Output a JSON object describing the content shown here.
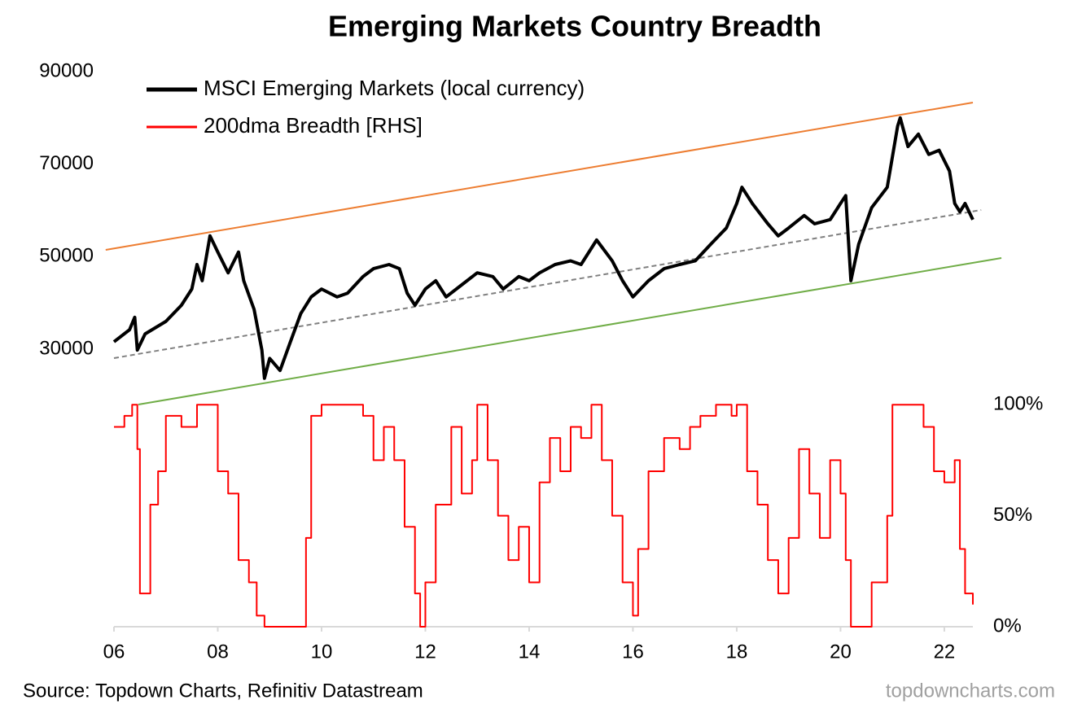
{
  "chart_data": {
    "type": "line",
    "title": "Emerging Markets Country Breadth",
    "source": "Source: Topdown Charts, Refinitiv Datastream",
    "watermark": "topdowncharts.com",
    "legend": "top-left",
    "xlim": [
      2006,
      2022.55
    ],
    "xticks": [
      {
        "value": 2006,
        "label": "06"
      },
      {
        "value": 2008,
        "label": "08"
      },
      {
        "value": 2010,
        "label": "10"
      },
      {
        "value": 2012,
        "label": "12"
      },
      {
        "value": 2014,
        "label": "14"
      },
      {
        "value": 2016,
        "label": "16"
      },
      {
        "value": 2018,
        "label": "18"
      },
      {
        "value": 2020,
        "label": "20"
      },
      {
        "value": 2022,
        "label": "22"
      }
    ],
    "ylim": [
      -30000,
      90000
    ],
    "yticks": [
      30000,
      50000,
      70000,
      90000
    ],
    "y2lim": [
      0,
      250
    ],
    "y2ticks": [
      {
        "value": 0,
        "label": "0%"
      },
      {
        "value": 50,
        "label": "50%"
      },
      {
        "value": 100,
        "label": "100%"
      }
    ],
    "series": [
      {
        "name": "MSCI Emerging Markets (local currency)",
        "color": "#000000",
        "width": 4,
        "x": [
          2006.0,
          2006.3,
          2006.4,
          2006.45,
          2006.6,
          2007.0,
          2007.3,
          2007.5,
          2007.6,
          2007.7,
          2007.85,
          2008.0,
          2008.2,
          2008.4,
          2008.5,
          2008.7,
          2008.85,
          2008.9,
          2009.0,
          2009.2,
          2009.4,
          2009.6,
          2009.8,
          2010.0,
          2010.3,
          2010.5,
          2010.8,
          2011.0,
          2011.3,
          2011.5,
          2011.65,
          2011.8,
          2012.0,
          2012.2,
          2012.4,
          2012.7,
          2013.0,
          2013.3,
          2013.5,
          2013.8,
          2014.0,
          2014.2,
          2014.5,
          2014.8,
          2015.0,
          2015.3,
          2015.6,
          2015.8,
          2016.0,
          2016.3,
          2016.6,
          2016.9,
          2017.2,
          2017.5,
          2017.8,
          2018.0,
          2018.1,
          2018.3,
          2018.6,
          2018.8,
          2019.0,
          2019.3,
          2019.5,
          2019.8,
          2020.0,
          2020.1,
          2020.2,
          2020.35,
          2020.6,
          2020.9,
          2021.1,
          2021.15,
          2021.3,
          2021.5,
          2021.7,
          2021.9,
          2022.1,
          2022.2,
          2022.3,
          2022.4,
          2022.55
        ],
        "values": [
          31600,
          34200,
          36900,
          29800,
          33300,
          36000,
          39500,
          43000,
          48300,
          44800,
          54500,
          51000,
          46500,
          51000,
          44800,
          38600,
          29800,
          23700,
          28000,
          25400,
          31600,
          37700,
          41300,
          43000,
          41300,
          42100,
          45700,
          47400,
          48300,
          47400,
          42100,
          39500,
          43000,
          44800,
          41300,
          43900,
          46500,
          45700,
          43000,
          45700,
          44800,
          46500,
          48300,
          49100,
          48300,
          53600,
          49100,
          44800,
          41300,
          44800,
          47400,
          48300,
          49100,
          52700,
          56200,
          61500,
          65000,
          61500,
          57100,
          54500,
          56200,
          58900,
          57100,
          58000,
          61500,
          63200,
          44800,
          52700,
          60600,
          65000,
          78200,
          80000,
          73800,
          76500,
          72100,
          73000,
          68500,
          61500,
          59700,
          61500,
          58000
        ]
      },
      {
        "name": "200dma Breadth [RHS]",
        "color": "#ff0000",
        "width": 2,
        "axis": "y2",
        "step": true,
        "x": [
          2006.0,
          2006.2,
          2006.35,
          2006.45,
          2006.5,
          2006.7,
          2006.85,
          2007.0,
          2007.3,
          2007.6,
          2007.9,
          2008.0,
          2008.2,
          2008.4,
          2008.6,
          2008.75,
          2008.9,
          2009.5,
          2009.7,
          2009.8,
          2010.0,
          2010.5,
          2010.8,
          2011.0,
          2011.2,
          2011.4,
          2011.6,
          2011.8,
          2011.9,
          2012.0,
          2012.2,
          2012.5,
          2012.7,
          2012.9,
          2013.0,
          2013.2,
          2013.4,
          2013.6,
          2013.8,
          2014.0,
          2014.2,
          2014.4,
          2014.6,
          2014.8,
          2015.0,
          2015.2,
          2015.4,
          2015.6,
          2015.8,
          2016.0,
          2016.1,
          2016.3,
          2016.6,
          2016.9,
          2017.1,
          2017.3,
          2017.6,
          2017.9,
          2018.0,
          2018.2,
          2018.4,
          2018.6,
          2018.8,
          2019.0,
          2019.2,
          2019.4,
          2019.6,
          2019.8,
          2020.0,
          2020.1,
          2020.2,
          2020.4,
          2020.6,
          2020.9,
          2021.0,
          2021.4,
          2021.6,
          2021.8,
          2022.0,
          2022.2,
          2022.3,
          2022.4,
          2022.55
        ],
        "values": [
          90,
          95,
          100,
          80,
          15,
          55,
          70,
          95,
          90,
          100,
          100,
          70,
          60,
          30,
          20,
          5,
          0,
          0,
          40,
          95,
          100,
          100,
          95,
          75,
          90,
          75,
          45,
          15,
          0,
          20,
          55,
          90,
          60,
          75,
          100,
          75,
          50,
          30,
          45,
          20,
          65,
          85,
          70,
          90,
          85,
          100,
          75,
          50,
          20,
          5,
          35,
          70,
          85,
          80,
          90,
          95,
          100,
          95,
          100,
          70,
          55,
          30,
          15,
          40,
          80,
          60,
          40,
          75,
          60,
          30,
          0,
          0,
          20,
          50,
          100,
          100,
          90,
          70,
          65,
          75,
          35,
          15,
          10
        ]
      }
    ],
    "trend_lines": [
      {
        "color": "#ed7d31",
        "x": [
          2005.84,
          2022.55
        ],
        "values": [
          51466,
          83314
        ]
      },
      {
        "color": "#70ad47",
        "x": [
          2006.47,
          2023.1
        ],
        "values": [
          18035,
          49707
        ]
      },
      {
        "color": "#808080",
        "dashed": true,
        "x": [
          2006.0,
          2022.71
        ],
        "values": [
          28065,
          60088
        ]
      }
    ]
  }
}
